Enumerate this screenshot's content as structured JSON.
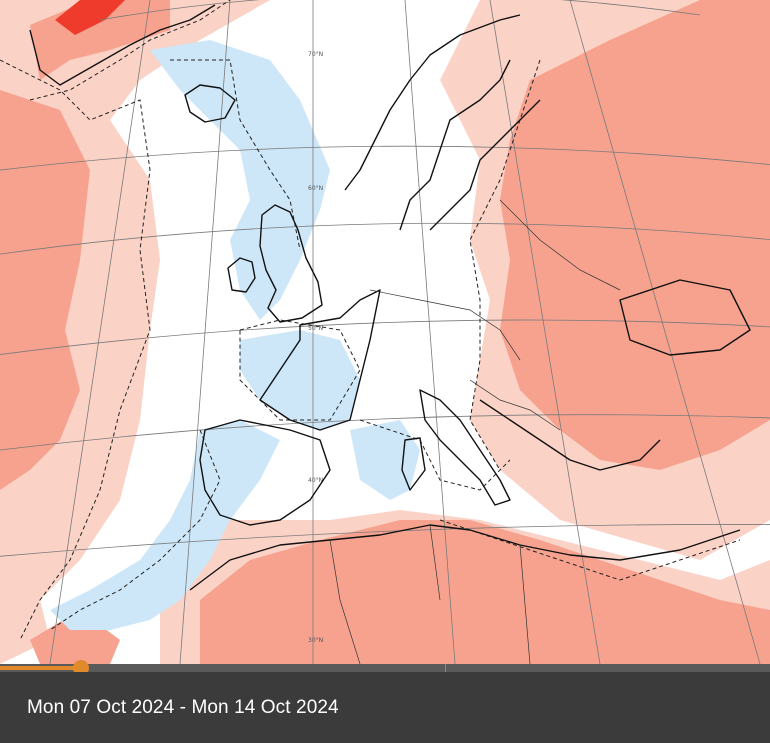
{
  "map": {
    "colors": {
      "ocean_white": "#ffffff",
      "warm_light": "#fbd2c6",
      "warm_medium": "#f6a28f",
      "warm_strong": "#ef3b2c",
      "cool_light": "#cde7f8",
      "coastline": "#111111",
      "graticule": "#7a7a7a"
    },
    "graticule_labels": [
      "60°N",
      "50°N",
      "40°N",
      "30°N",
      "70°N"
    ]
  },
  "timeline": {
    "progress_fraction": 0.105,
    "tick_fraction": 0.578
  },
  "caption": {
    "date_range": "Mon 07 Oct 2024 - Mon 14 Oct 2024"
  }
}
